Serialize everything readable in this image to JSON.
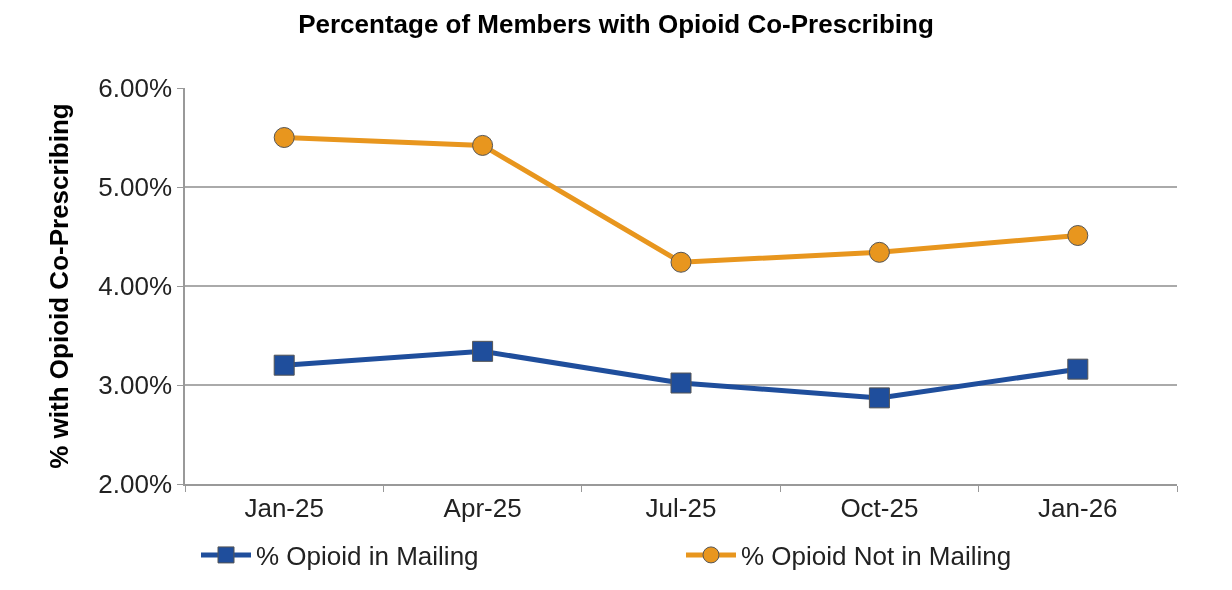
{
  "chart_data": {
    "type": "line",
    "title": "Percentage of Members with Opioid Co-Prescribing",
    "ylabel": "% with Opioid Co-Prescribing",
    "categories": [
      "Jan-25",
      "Apr-25",
      "Jul-25",
      "Oct-25",
      "Jan-26"
    ],
    "series": [
      {
        "name": "% Opioid in Mailing",
        "color": "#1f4e9c",
        "marker": "square",
        "values": [
          3.2,
          3.34,
          3.02,
          2.87,
          3.16
        ]
      },
      {
        "name": "% Opioid Not in Mailing",
        "color": "#e8961e",
        "marker": "circle",
        "values": [
          5.5,
          5.42,
          4.24,
          4.34,
          4.51
        ]
      }
    ],
    "ylim": [
      2,
      6
    ],
    "yticks": [
      {
        "value": 2,
        "label": "2.00%"
      },
      {
        "value": 3,
        "label": "3.00%"
      },
      {
        "value": 4,
        "label": "4.00%"
      },
      {
        "value": 5,
        "label": "5.00%"
      },
      {
        "value": 6,
        "label": "6.00%"
      }
    ],
    "grid": "y",
    "legend": "bottom",
    "line_style": "solid"
  }
}
